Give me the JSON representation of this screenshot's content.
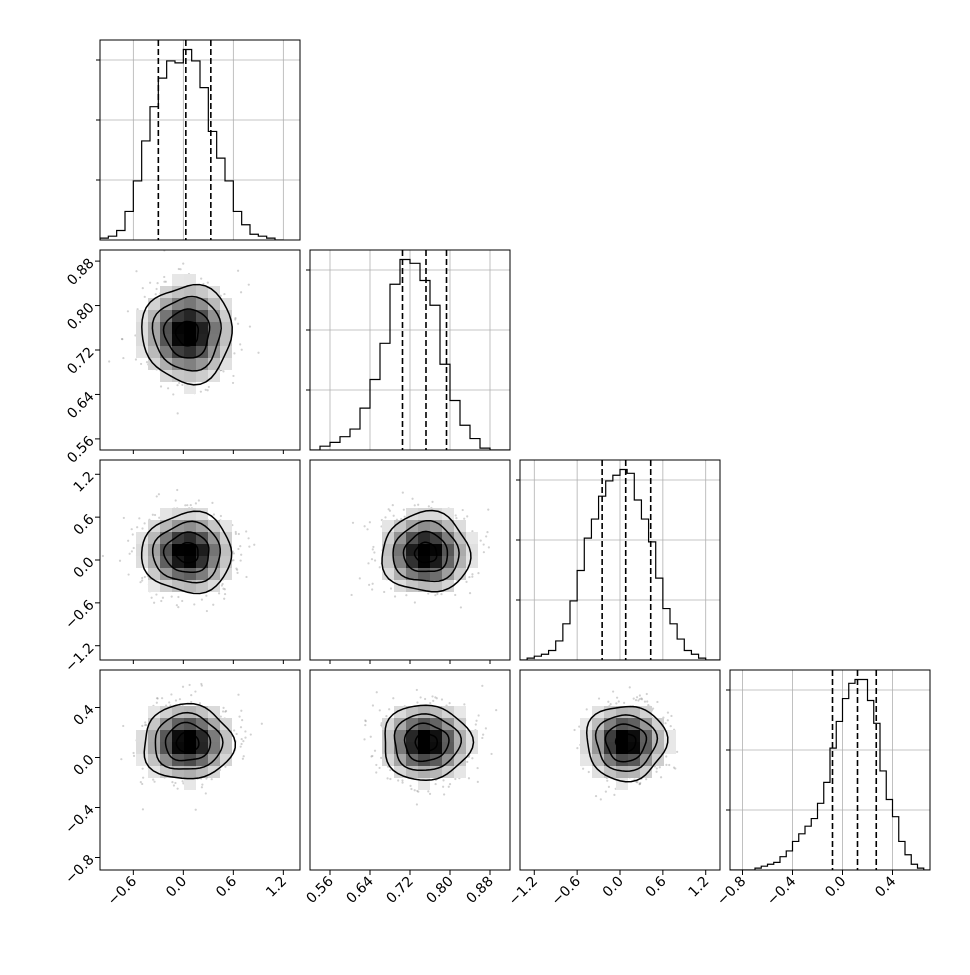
{
  "figure": {
    "type": "corner",
    "colors": {
      "line": "#000000",
      "grid": "#b0b0b0",
      "scatter": "#7a7a7a"
    }
  },
  "chart_data": [
    {
      "type": "histogram",
      "row": 0,
      "col": 0,
      "xlim": [
        -1.0,
        1.4
      ],
      "x_ticks": [
        "-0.6",
        "0.0",
        "0.6",
        "1.2"
      ],
      "quantiles": [
        -0.3,
        0.03,
        0.33
      ],
      "bin_edges": [
        -1.0,
        -0.9,
        -0.8,
        -0.7,
        -0.6,
        -0.5,
        -0.4,
        -0.3,
        -0.2,
        -0.1,
        0.0,
        0.1,
        0.2,
        0.3,
        0.4,
        0.5,
        0.6,
        0.7,
        0.8,
        0.9,
        1.0,
        1.1,
        1.2
      ],
      "counts": [
        1,
        2,
        5,
        15,
        31,
        52,
        70,
        85,
        94,
        93,
        100,
        94,
        80,
        57,
        43,
        31,
        15,
        8,
        3,
        2,
        1,
        0
      ]
    },
    {
      "type": "histogram",
      "row": 1,
      "col": 1,
      "xlim": [
        0.52,
        0.92
      ],
      "x_ticks": [
        "0.56",
        "0.64",
        "0.72",
        "0.80",
        "0.88"
      ],
      "quantiles": [
        0.705,
        0.752,
        0.793
      ],
      "bin_edges": [
        0.52,
        0.54,
        0.56,
        0.58,
        0.6,
        0.62,
        0.64,
        0.66,
        0.68,
        0.7,
        0.72,
        0.74,
        0.76,
        0.78,
        0.8,
        0.82,
        0.84,
        0.86,
        0.88,
        0.9,
        0.92
      ],
      "counts": [
        0,
        2,
        4,
        7,
        11,
        22,
        37,
        56,
        87,
        100,
        98,
        89,
        76,
        45,
        26,
        13,
        6,
        1,
        0,
        0
      ]
    },
    {
      "type": "histogram",
      "row": 2,
      "col": 2,
      "xlim": [
        -1.4,
        1.4
      ],
      "x_ticks": [
        "-1.2",
        "-0.6",
        "0.0",
        "0.6",
        "1.2"
      ],
      "quantiles": [
        -0.25,
        0.08,
        0.43
      ],
      "bin_edges": [
        -1.4,
        -1.3,
        -1.2,
        -1.1,
        -1.0,
        -0.9,
        -0.8,
        -0.7,
        -0.6,
        -0.5,
        -0.4,
        -0.3,
        -0.2,
        -0.1,
        0.0,
        0.1,
        0.2,
        0.3,
        0.4,
        0.5,
        0.6,
        0.7,
        0.8,
        0.9,
        1.0,
        1.1,
        1.2,
        1.3,
        1.4
      ],
      "counts": [
        0,
        1,
        2,
        3,
        5,
        10,
        19,
        31,
        47,
        64,
        74,
        86,
        94,
        97,
        100,
        98,
        84,
        74,
        62,
        43,
        27,
        19,
        11,
        5,
        3,
        1,
        0,
        0
      ]
    },
    {
      "type": "histogram",
      "row": 3,
      "col": 3,
      "xlim": [
        -0.9,
        0.7
      ],
      "x_ticks": [
        "-0.8",
        "-0.4",
        "0.0",
        "0.4"
      ],
      "quantiles": [
        -0.08,
        0.12,
        0.27
      ],
      "bin_edges": [
        -0.9,
        -0.85,
        -0.8,
        -0.75,
        -0.7,
        -0.65,
        -0.6,
        -0.55,
        -0.5,
        -0.45,
        -0.4,
        -0.35,
        -0.3,
        -0.25,
        -0.2,
        -0.15,
        -0.1,
        -0.05,
        0.0,
        0.05,
        0.1,
        0.15,
        0.2,
        0.25,
        0.3,
        0.35,
        0.4,
        0.45,
        0.5,
        0.55,
        0.6,
        0.65,
        0.7
      ],
      "counts": [
        0,
        0,
        0,
        0,
        1,
        2,
        3,
        4,
        7,
        10,
        15,
        19,
        23,
        27,
        35,
        46,
        64,
        78,
        90,
        98,
        100,
        100,
        89,
        77,
        52,
        37,
        28,
        15,
        8,
        3,
        1,
        0
      ]
    },
    {
      "type": "contour2d",
      "row": 1,
      "col": 0,
      "xlim": [
        -1.0,
        1.4
      ],
      "ylim": [
        0.54,
        0.9
      ],
      "y_ticks": [
        "0.56",
        "0.64",
        "0.72",
        "0.80",
        "0.88"
      ],
      "center": [
        0.05,
        0.75
      ],
      "sigma": [
        0.27,
        0.044
      ]
    },
    {
      "type": "contour2d",
      "row": 2,
      "col": 0,
      "xlim": [
        -1.0,
        1.4
      ],
      "ylim": [
        -1.4,
        1.4
      ],
      "y_ticks": [
        "-1.2",
        "-0.6",
        "0.0",
        "0.6",
        "1.2"
      ],
      "center": [
        0.05,
        0.1
      ],
      "sigma": [
        0.27,
        0.28
      ]
    },
    {
      "type": "contour2d",
      "row": 2,
      "col": 1,
      "xlim": [
        0.52,
        0.92
      ],
      "ylim": [
        -1.4,
        1.4
      ],
      "center": [
        0.752,
        0.1
      ],
      "sigma": [
        0.044,
        0.28
      ]
    },
    {
      "type": "contour2d",
      "row": 3,
      "col": 0,
      "xlim": [
        -1.0,
        1.4
      ],
      "ylim": [
        -0.9,
        0.7
      ],
      "y_ticks": [
        "-0.8",
        "-0.4",
        "0.0",
        "0.4"
      ],
      "center": [
        0.05,
        0.12
      ],
      "sigma": [
        0.27,
        0.15
      ]
    },
    {
      "type": "contour2d",
      "row": 3,
      "col": 1,
      "xlim": [
        0.52,
        0.92
      ],
      "ylim": [
        -0.9,
        0.7
      ],
      "center": [
        0.752,
        0.12
      ],
      "sigma": [
        0.044,
        0.15
      ]
    },
    {
      "type": "contour2d",
      "row": 3,
      "col": 2,
      "xlim": [
        -1.4,
        1.4
      ],
      "ylim": [
        -0.9,
        0.7
      ],
      "center": [
        0.08,
        0.12
      ],
      "sigma": [
        0.28,
        0.15
      ]
    }
  ]
}
